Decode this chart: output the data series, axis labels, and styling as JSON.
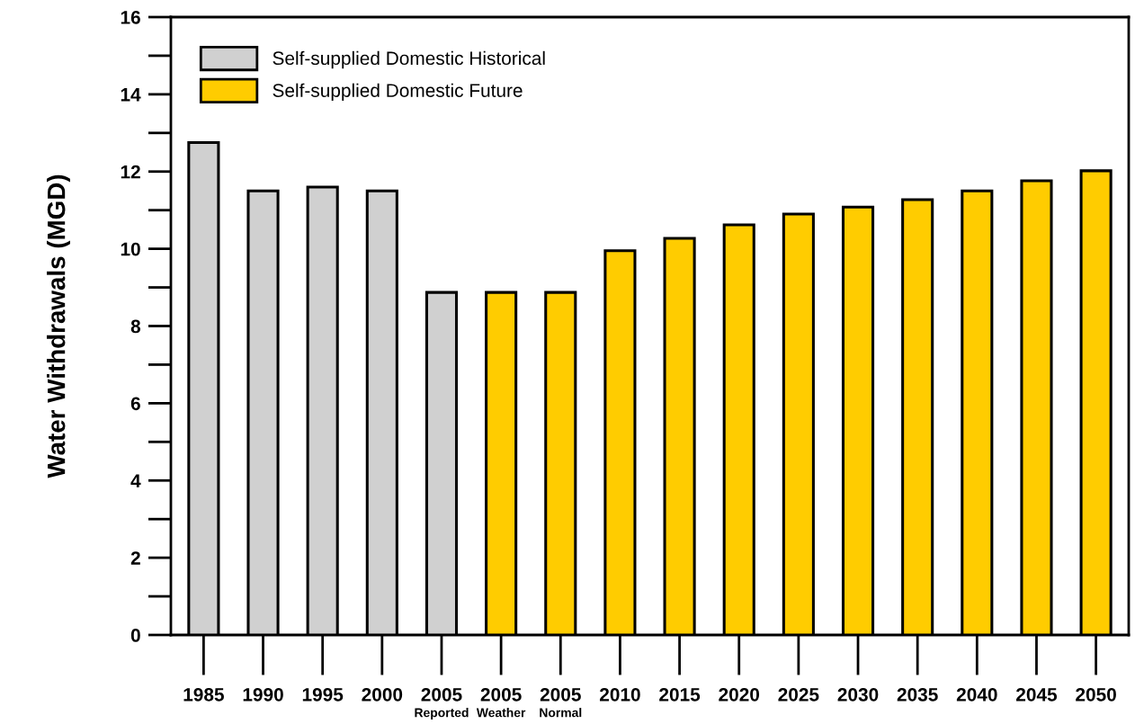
{
  "chart_data": {
    "type": "bar",
    "ylabel": "Water Withdrawals (MGD)",
    "categories": [
      "1985",
      "1990",
      "1995",
      "2000",
      "2005\nReported",
      "2005\nWeather",
      "2005\nNormal",
      "2010",
      "2015",
      "2020",
      "2025",
      "2030",
      "2035",
      "2040",
      "2045",
      "2050"
    ],
    "series": [
      {
        "name": "Self-supplied Domestic Historical",
        "color": "#d0d0d0",
        "values": [
          12.75,
          11.5,
          11.6,
          11.5,
          8.87,
          null,
          null,
          null,
          null,
          null,
          null,
          null,
          null,
          null,
          null,
          null
        ]
      },
      {
        "name": "Self-supplied Domestic Future",
        "color": "#ffcc00",
        "values": [
          null,
          null,
          null,
          null,
          null,
          8.87,
          8.87,
          9.95,
          10.27,
          10.62,
          10.9,
          11.08,
          11.27,
          11.5,
          11.76,
          12.02
        ]
      }
    ],
    "ylim": [
      0,
      16
    ],
    "yticks": [
      0,
      2,
      4,
      6,
      8,
      10,
      12,
      14,
      16
    ],
    "grid": false,
    "legend": "top left"
  }
}
